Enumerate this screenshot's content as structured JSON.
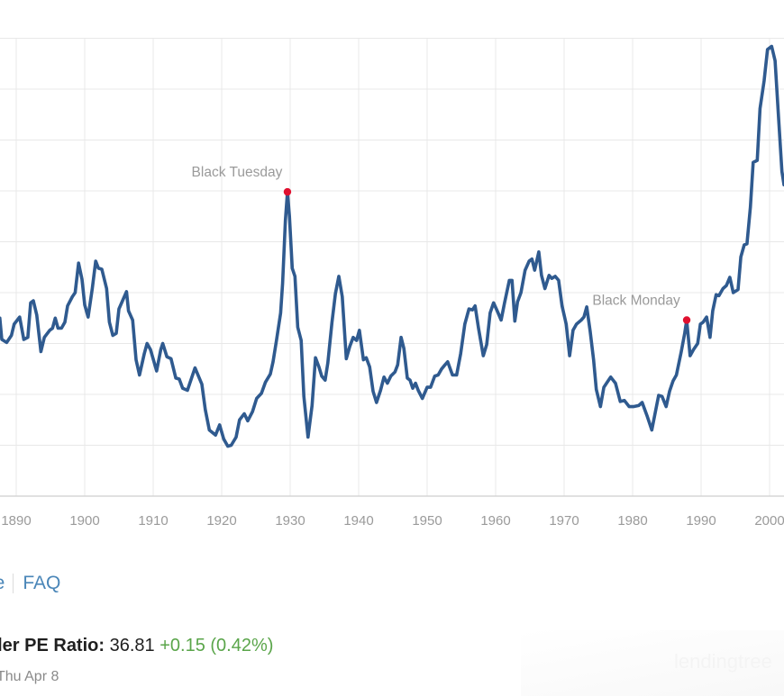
{
  "chart_data": {
    "type": "line",
    "title": "",
    "xlabel": "",
    "ylabel": "",
    "x_ticks": [
      "1890",
      "1900",
      "1910",
      "1920",
      "1930",
      "1940",
      "1950",
      "1960",
      "1970",
      "1980",
      "1990",
      "2000"
    ],
    "x_tick_values": [
      1890,
      1900,
      1910,
      1920,
      1930,
      1940,
      1950,
      1960,
      1970,
      1980,
      1990,
      2000
    ],
    "xlim": [
      1887.6,
      2002.1
    ],
    "ylim": [
      0,
      45
    ],
    "y_grid_step": 5,
    "grid": true,
    "legend": "none",
    "series": [
      {
        "name": "Shiller PE Ratio",
        "color": "#2f5a8f",
        "points": [
          [
            1887.6,
            17.5
          ],
          [
            1887.9,
            15.4
          ],
          [
            1888.6,
            15.1
          ],
          [
            1889.3,
            15.8
          ],
          [
            1889.7,
            16.9
          ],
          [
            1890.5,
            17.6
          ],
          [
            1891.1,
            15.4
          ],
          [
            1891.7,
            15.6
          ],
          [
            1892.1,
            19.0
          ],
          [
            1892.5,
            19.2
          ],
          [
            1893.0,
            17.8
          ],
          [
            1893.6,
            14.2
          ],
          [
            1894.1,
            15.6
          ],
          [
            1894.9,
            16.3
          ],
          [
            1895.3,
            16.5
          ],
          [
            1895.7,
            17.5
          ],
          [
            1896.1,
            16.5
          ],
          [
            1896.6,
            16.5
          ],
          [
            1897.1,
            17.1
          ],
          [
            1897.5,
            18.7
          ],
          [
            1898.2,
            19.6
          ],
          [
            1898.6,
            20.0
          ],
          [
            1899.1,
            22.9
          ],
          [
            1899.6,
            21.3
          ],
          [
            1900.0,
            18.8
          ],
          [
            1900.5,
            17.6
          ],
          [
            1901.1,
            20.4
          ],
          [
            1901.6,
            23.1
          ],
          [
            1902.0,
            22.4
          ],
          [
            1902.5,
            22.3
          ],
          [
            1903.2,
            20.4
          ],
          [
            1903.6,
            17.1
          ],
          [
            1904.1,
            15.8
          ],
          [
            1904.6,
            16.0
          ],
          [
            1905.0,
            18.4
          ],
          [
            1906.1,
            20.1
          ],
          [
            1906.4,
            18.2
          ],
          [
            1907.0,
            17.3
          ],
          [
            1907.5,
            13.4
          ],
          [
            1908.0,
            11.9
          ],
          [
            1908.7,
            14.0
          ],
          [
            1909.1,
            15.0
          ],
          [
            1909.6,
            14.4
          ],
          [
            1910.5,
            12.3
          ],
          [
            1911.1,
            14.4
          ],
          [
            1911.4,
            15.0
          ],
          [
            1912.0,
            13.7
          ],
          [
            1912.6,
            13.5
          ],
          [
            1913.3,
            11.6
          ],
          [
            1913.8,
            11.5
          ],
          [
            1914.3,
            10.6
          ],
          [
            1915.0,
            10.4
          ],
          [
            1916.1,
            12.6
          ],
          [
            1917.1,
            11.0
          ],
          [
            1917.6,
            8.5
          ],
          [
            1918.2,
            6.5
          ],
          [
            1919.1,
            6.0
          ],
          [
            1919.7,
            7.0
          ],
          [
            1920.3,
            5.6
          ],
          [
            1920.9,
            4.9
          ],
          [
            1921.4,
            5.0
          ],
          [
            1922.1,
            5.8
          ],
          [
            1922.6,
            7.5
          ],
          [
            1923.3,
            8.1
          ],
          [
            1923.8,
            7.4
          ],
          [
            1924.5,
            8.3
          ],
          [
            1925.1,
            9.6
          ],
          [
            1925.8,
            10.1
          ],
          [
            1926.4,
            11.2
          ],
          [
            1927.1,
            12.0
          ],
          [
            1927.5,
            13.2
          ],
          [
            1928.0,
            15.3
          ],
          [
            1928.6,
            18.0
          ],
          [
            1928.9,
            20.9
          ],
          [
            1929.3,
            27.1
          ],
          [
            1929.6,
            29.9
          ],
          [
            1929.9,
            27.5
          ],
          [
            1930.3,
            22.4
          ],
          [
            1930.7,
            21.6
          ],
          [
            1931.1,
            16.6
          ],
          [
            1931.6,
            15.3
          ],
          [
            1932.0,
            9.8
          ],
          [
            1932.6,
            5.8
          ],
          [
            1933.2,
            8.9
          ],
          [
            1933.7,
            13.6
          ],
          [
            1934.2,
            12.7
          ],
          [
            1934.6,
            11.8
          ],
          [
            1935.1,
            11.4
          ],
          [
            1935.5,
            13.1
          ],
          [
            1936.1,
            17.1
          ],
          [
            1936.6,
            19.9
          ],
          [
            1937.1,
            21.6
          ],
          [
            1937.6,
            19.6
          ],
          [
            1938.2,
            13.5
          ],
          [
            1938.7,
            14.7
          ],
          [
            1939.2,
            15.6
          ],
          [
            1939.7,
            15.3
          ],
          [
            1940.1,
            16.3
          ],
          [
            1940.7,
            13.4
          ],
          [
            1941.1,
            13.6
          ],
          [
            1941.6,
            12.7
          ],
          [
            1942.1,
            10.3
          ],
          [
            1942.6,
            9.2
          ],
          [
            1943.2,
            10.4
          ],
          [
            1943.7,
            11.7
          ],
          [
            1944.2,
            11.1
          ],
          [
            1944.7,
            11.8
          ],
          [
            1945.3,
            12.2
          ],
          [
            1945.7,
            12.9
          ],
          [
            1946.2,
            15.6
          ],
          [
            1946.6,
            14.5
          ],
          [
            1947.1,
            11.6
          ],
          [
            1947.5,
            11.4
          ],
          [
            1947.9,
            10.6
          ],
          [
            1948.3,
            11.1
          ],
          [
            1948.7,
            10.4
          ],
          [
            1949.3,
            9.6
          ],
          [
            1950.0,
            10.7
          ],
          [
            1950.5,
            10.7
          ],
          [
            1951.1,
            11.8
          ],
          [
            1951.6,
            11.9
          ],
          [
            1952.1,
            12.5
          ],
          [
            1952.6,
            12.9
          ],
          [
            1953.0,
            13.2
          ],
          [
            1953.7,
            11.9
          ],
          [
            1954.3,
            11.9
          ],
          [
            1954.9,
            14.0
          ],
          [
            1955.5,
            16.9
          ],
          [
            1956.1,
            18.4
          ],
          [
            1956.6,
            18.3
          ],
          [
            1957.0,
            18.7
          ],
          [
            1957.5,
            16.5
          ],
          [
            1958.2,
            13.8
          ],
          [
            1958.7,
            14.9
          ],
          [
            1959.2,
            18.0
          ],
          [
            1959.7,
            19.0
          ],
          [
            1960.3,
            18.1
          ],
          [
            1960.8,
            17.3
          ],
          [
            1961.3,
            19.0
          ],
          [
            1962.0,
            21.2
          ],
          [
            1962.4,
            21.2
          ],
          [
            1962.8,
            17.2
          ],
          [
            1963.2,
            19.1
          ],
          [
            1963.7,
            20.0
          ],
          [
            1964.3,
            22.2
          ],
          [
            1964.9,
            23.1
          ],
          [
            1965.3,
            23.3
          ],
          [
            1965.7,
            22.2
          ],
          [
            1966.3,
            24.0
          ],
          [
            1966.7,
            21.7
          ],
          [
            1967.2,
            20.4
          ],
          [
            1967.8,
            21.7
          ],
          [
            1968.2,
            21.4
          ],
          [
            1968.7,
            21.6
          ],
          [
            1969.2,
            21.2
          ],
          [
            1969.7,
            18.7
          ],
          [
            1970.3,
            16.9
          ],
          [
            1970.8,
            13.8
          ],
          [
            1971.3,
            16.3
          ],
          [
            1971.8,
            16.9
          ],
          [
            1972.5,
            17.3
          ],
          [
            1972.9,
            17.6
          ],
          [
            1973.3,
            18.6
          ],
          [
            1973.8,
            16.2
          ],
          [
            1974.3,
            13.4
          ],
          [
            1974.7,
            10.5
          ],
          [
            1975.3,
            8.8
          ],
          [
            1975.8,
            10.7
          ],
          [
            1976.3,
            11.2
          ],
          [
            1976.8,
            11.7
          ],
          [
            1977.5,
            11.1
          ],
          [
            1978.2,
            9.3
          ],
          [
            1978.8,
            9.4
          ],
          [
            1979.5,
            8.8
          ],
          [
            1980.1,
            8.8
          ],
          [
            1980.9,
            8.9
          ],
          [
            1981.4,
            9.2
          ],
          [
            1982.1,
            7.9
          ],
          [
            1982.8,
            6.5
          ],
          [
            1983.3,
            8.2
          ],
          [
            1983.8,
            9.9
          ],
          [
            1984.3,
            9.8
          ],
          [
            1984.9,
            8.8
          ],
          [
            1985.4,
            10.3
          ],
          [
            1985.9,
            11.3
          ],
          [
            1986.4,
            11.9
          ],
          [
            1987.1,
            14.2
          ],
          [
            1987.6,
            16.0
          ],
          [
            1987.9,
            17.3
          ],
          [
            1988.4,
            13.8
          ],
          [
            1988.9,
            14.4
          ],
          [
            1989.5,
            15.0
          ],
          [
            1989.9,
            16.9
          ],
          [
            1990.3,
            17.1
          ],
          [
            1990.8,
            17.6
          ],
          [
            1991.3,
            15.6
          ],
          [
            1991.7,
            18.2
          ],
          [
            1992.2,
            19.8
          ],
          [
            1992.6,
            19.7
          ],
          [
            1993.2,
            20.4
          ],
          [
            1993.7,
            20.7
          ],
          [
            1994.2,
            21.5
          ],
          [
            1994.7,
            20.0
          ],
          [
            1995.4,
            20.3
          ],
          [
            1995.8,
            23.5
          ],
          [
            1996.3,
            24.7
          ],
          [
            1996.7,
            24.8
          ],
          [
            1997.2,
            28.4
          ],
          [
            1997.6,
            32.8
          ],
          [
            1998.2,
            33.0
          ],
          [
            1998.6,
            38.1
          ],
          [
            1999.2,
            40.8
          ],
          [
            1999.7,
            43.9
          ],
          [
            2000.3,
            44.2
          ],
          [
            2000.8,
            42.8
          ],
          [
            2001.3,
            37.3
          ],
          [
            2001.8,
            31.9
          ],
          [
            2002.1,
            30.6
          ]
        ]
      }
    ],
    "annotations": [
      {
        "label": "Black Tuesday",
        "x": 1929.6,
        "y": 29.9,
        "color": "#e0102f"
      },
      {
        "label": "Black Monday",
        "x": 1987.9,
        "y": 17.3,
        "color": "#e0102f"
      }
    ]
  },
  "links": {
    "table_label": "le",
    "faq_label": "FAQ",
    "color": "#4a86b8"
  },
  "metric": {
    "label": "iller PE Ratio:",
    "value": "36.81",
    "change": "+0.15 (0.42%)",
    "change_color": "#5aa54a",
    "date": "Thu Apr 8"
  },
  "ad": {
    "text": "lendingtree"
  }
}
